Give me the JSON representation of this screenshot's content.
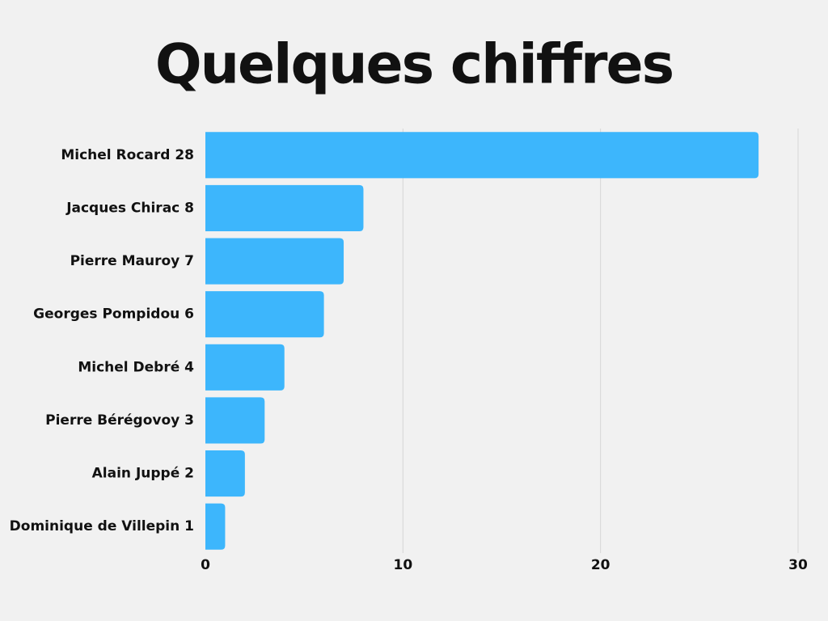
{
  "chart_data": {
    "type": "hbar",
    "title": "Quelques chiffres",
    "categories": [
      "Michel Rocard 28",
      "Jacques Chirac 8",
      "Pierre Mauroy 7",
      "Georges Pompidou 6",
      "Michel Debré 4",
      "Pierre Bérégovoy 3",
      "Alain Juppé 2",
      "Dominique de Villepin 1"
    ],
    "values": [
      28,
      8,
      7,
      6,
      4,
      3,
      2,
      1
    ],
    "color": "#3db6fc",
    "xlim": [
      0,
      30
    ],
    "xticks": [
      0,
      10,
      20,
      30
    ],
    "grid": true
  }
}
